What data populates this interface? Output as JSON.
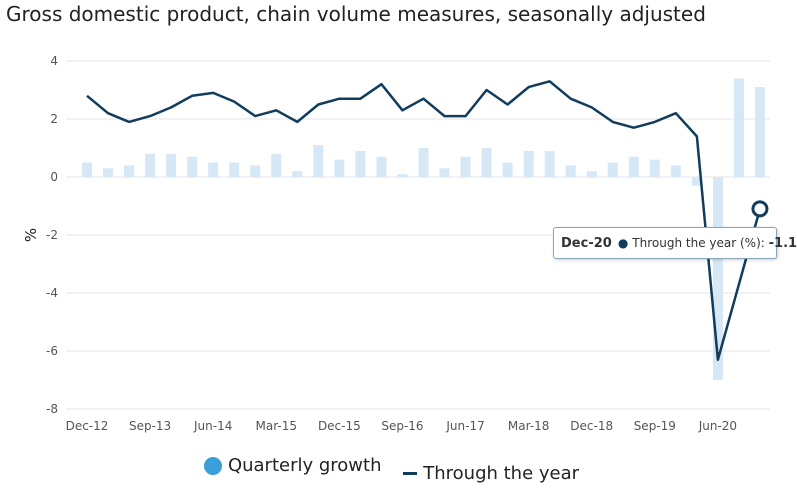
{
  "chart_data": {
    "type": "bar+line",
    "title": "Gross domestic product, chain volume measures, seasonally adjusted",
    "ylabel": "%",
    "ylim": [
      -8,
      4
    ],
    "yticks": [
      4,
      2,
      0,
      -2,
      -4,
      -6,
      -8
    ],
    "grid": true,
    "legend": "bottom",
    "x": [
      "Dec-12",
      "Mar-13",
      "Jun-13",
      "Sep-13",
      "Dec-13",
      "Mar-14",
      "Jun-14",
      "Sep-14",
      "Dec-14",
      "Mar-15",
      "Jun-15",
      "Sep-15",
      "Dec-15",
      "Mar-16",
      "Jun-16",
      "Sep-16",
      "Dec-16",
      "Mar-17",
      "Jun-17",
      "Sep-17",
      "Dec-17",
      "Mar-18",
      "Jun-18",
      "Sep-18",
      "Dec-18",
      "Mar-19",
      "Jun-19",
      "Sep-19",
      "Dec-19",
      "Mar-20",
      "Jun-20",
      "Sep-20",
      "Dec-20"
    ],
    "xticks": [
      "Dec-12",
      "Sep-13",
      "Jun-14",
      "Mar-15",
      "Dec-15",
      "Sep-16",
      "Jun-17",
      "Mar-18",
      "Dec-18",
      "Sep-19",
      "Jun-20"
    ],
    "series": [
      {
        "name": "Quarterly growth",
        "type": "bar",
        "color": "#d6e8f5",
        "values": [
          0.5,
          0.3,
          0.4,
          0.8,
          0.8,
          0.7,
          0.5,
          0.5,
          0.4,
          0.8,
          0.2,
          1.1,
          0.6,
          0.9,
          0.7,
          0.1,
          1.0,
          0.3,
          0.7,
          1.0,
          0.5,
          0.9,
          0.9,
          0.4,
          0.2,
          0.5,
          0.7,
          0.6,
          0.4,
          -0.3,
          -7.0,
          3.4,
          3.1
        ]
      },
      {
        "name": "Through the year",
        "type": "line",
        "color": "#123c5c",
        "values": [
          2.8,
          2.2,
          1.9,
          2.1,
          2.4,
          2.8,
          2.9,
          2.6,
          2.1,
          2.3,
          1.9,
          2.5,
          2.7,
          2.7,
          3.2,
          2.3,
          2.7,
          2.1,
          2.1,
          3.0,
          2.5,
          3.1,
          3.3,
          2.7,
          2.4,
          1.9,
          1.7,
          1.9,
          2.2,
          1.4,
          -6.3,
          -3.7,
          -1.1
        ]
      }
    ],
    "legend_dot_color": "#3a9fd6",
    "tooltip": {
      "date": "Dec-20",
      "series": "Through the year (%):",
      "value": "-1.1"
    }
  }
}
